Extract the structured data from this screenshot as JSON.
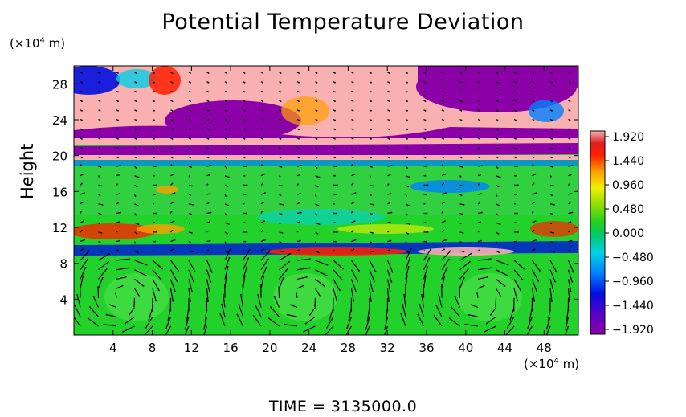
{
  "chart_data": {
    "type": "heatmap",
    "title": "Potential Temperature Deviation",
    "ylabel": "Height",
    "x_unit": "(×10⁴ m)",
    "y_unit": "(×10⁴ m)",
    "x_ticks": [
      4,
      8,
      12,
      16,
      20,
      24,
      28,
      32,
      36,
      40,
      44,
      48
    ],
    "y_ticks": [
      4,
      8,
      12,
      16,
      20,
      24,
      28
    ],
    "xlim": [
      0,
      51.5
    ],
    "ylim": [
      0,
      30
    ],
    "colorbar": {
      "labels": [
        "1.920",
        "1.440",
        "0.960",
        "0.480",
        "0.000",
        "−0.480",
        "−0.960",
        "−1.440",
        "−1.920"
      ],
      "range": [
        -1.92,
        1.92
      ]
    },
    "colors": {
      "high": "#f8b0b0",
      "low": "#8c00a8",
      "mid": "#22d22a"
    },
    "time_label": "TIME  =  3135000.0"
  }
}
